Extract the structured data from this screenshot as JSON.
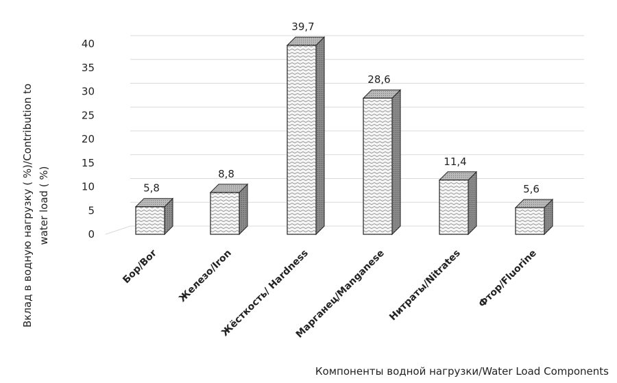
{
  "chart_data": {
    "type": "bar",
    "categories": [
      "Бор/Bor",
      "Железо/Iron",
      "Жёсткость/ Hardness",
      "Марганец/Manganese",
      "Нитраты/Nitrates",
      "Фтор/Fluorine"
    ],
    "values": [
      5.8,
      8.8,
      39.7,
      28.6,
      11.4,
      5.6
    ],
    "value_labels": [
      "5,8",
      "8,8",
      "39,7",
      "28,6",
      "11,4",
      "5,6"
    ],
    "title": "",
    "xlabel": "Компоненты водной нагрузки/Water Load Components",
    "ylabel_lines": [
      "Вклад в водную нагрузку ( %)/Contribution to",
      "water load ( %)"
    ],
    "ylim": [
      0,
      40
    ],
    "yticks": [
      0,
      5,
      10,
      15,
      20,
      25,
      30,
      35,
      40
    ],
    "grid": true,
    "style": "3d-column",
    "colors": {
      "bar_front": "#f4f4f4",
      "bar_side": "#9a9a9a",
      "bar_top": "#c8c8c8",
      "grid": "#d9d9d9"
    }
  }
}
